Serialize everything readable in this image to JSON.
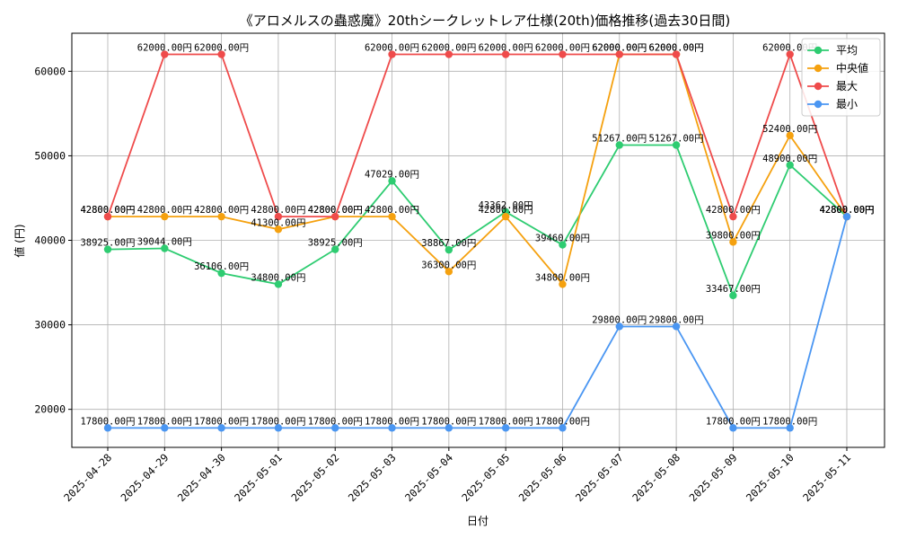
{
  "chart_data": {
    "type": "line",
    "title": "《アロメルスの蟲惑魔》20thシークレットレア仕様(20th)価格推移(過去30日間)",
    "xlabel": "日付",
    "ylabel": "値 (円)",
    "categories": [
      "2025-04-28",
      "2025-04-29",
      "2025-04-30",
      "2025-05-01",
      "2025-05-02",
      "2025-05-03",
      "2025-05-04",
      "2025-05-05",
      "2025-05-06",
      "2025-05-07",
      "2025-05-08",
      "2025-05-09",
      "2025-05-10",
      "2025-05-11"
    ],
    "ylim": [
      15500,
      64500
    ],
    "yticks": [
      20000,
      30000,
      40000,
      50000,
      60000
    ],
    "grid": true,
    "legend_position": "top-right",
    "label_suffix": "円",
    "series": [
      {
        "name": "平均",
        "color": "#2ecc71",
        "values": [
          38925,
          39044,
          36106,
          34800,
          38925,
          47029,
          38867,
          43362,
          39460,
          51267,
          51267,
          33467,
          48900,
          42800
        ]
      },
      {
        "name": "中央値",
        "color": "#f5a10f",
        "values": [
          42800,
          42800,
          42800,
          41300,
          42800,
          42800,
          36300,
          42800,
          34800,
          62000,
          62000,
          39800,
          52400,
          42800
        ]
      },
      {
        "name": "最大",
        "color": "#ef4b4b",
        "values": [
          42800,
          62000,
          62000,
          42800,
          42800,
          62000,
          62000,
          62000,
          62000,
          62000,
          62000,
          42800,
          62000,
          42800
        ]
      },
      {
        "name": "最小",
        "color": "#4a96f2",
        "values": [
          17800,
          17800,
          17800,
          17800,
          17800,
          17800,
          17800,
          17800,
          17800,
          29800,
          29800,
          17800,
          17800,
          42800
        ]
      }
    ]
  }
}
